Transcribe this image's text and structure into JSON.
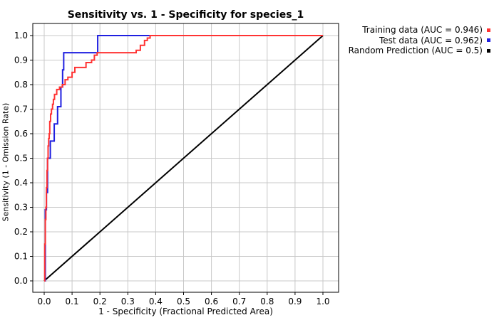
{
  "chart_data": {
    "type": "line",
    "title": "Sensitivity vs. 1 - Specificity for species_1",
    "xlabel": "1 - Specificity  (Fractional Predicted Area)",
    "ylabel": "Sensitivity (1 - Omission Rate)",
    "xlim": [
      0,
      1
    ],
    "ylim": [
      0,
      1
    ],
    "xticks": [
      "0.0",
      "0.1",
      "0.2",
      "0.3",
      "0.4",
      "0.5",
      "0.6",
      "0.7",
      "0.8",
      "0.9",
      "1.0"
    ],
    "yticks": [
      "0.0",
      "0.1",
      "0.2",
      "0.3",
      "0.4",
      "0.5",
      "0.6",
      "0.7",
      "0.8",
      "0.9",
      "1.0"
    ],
    "grid": true,
    "legend_position": "top-right",
    "series": [
      {
        "name": "Training data (AUC = 0.946)",
        "color": "#ff3333",
        "x": [
          0,
          0.002,
          0.002,
          0.004,
          0.004,
          0.006,
          0.006,
          0.008,
          0.008,
          0.01,
          0.01,
          0.012,
          0.012,
          0.014,
          0.014,
          0.016,
          0.016,
          0.018,
          0.018,
          0.02,
          0.02,
          0.023,
          0.023,
          0.026,
          0.026,
          0.03,
          0.03,
          0.033,
          0.033,
          0.037,
          0.037,
          0.045,
          0.045,
          0.055,
          0.055,
          0.065,
          0.065,
          0.075,
          0.075,
          0.085,
          0.085,
          0.1,
          0.1,
          0.11,
          0.11,
          0.15,
          0.15,
          0.17,
          0.17,
          0.18,
          0.18,
          0.19,
          0.19,
          0.33,
          0.33,
          0.345,
          0.345,
          0.36,
          0.36,
          0.37,
          0.37,
          0.38,
          0.38,
          1.0
        ],
        "y": [
          0,
          0,
          0.15,
          0.15,
          0.25,
          0.25,
          0.3,
          0.3,
          0.38,
          0.38,
          0.45,
          0.45,
          0.5,
          0.5,
          0.55,
          0.55,
          0.58,
          0.58,
          0.6,
          0.6,
          0.65,
          0.65,
          0.68,
          0.68,
          0.7,
          0.7,
          0.72,
          0.72,
          0.74,
          0.74,
          0.76,
          0.76,
          0.78,
          0.78,
          0.79,
          0.79,
          0.8,
          0.8,
          0.82,
          0.82,
          0.83,
          0.83,
          0.85,
          0.85,
          0.87,
          0.87,
          0.89,
          0.89,
          0.9,
          0.9,
          0.92,
          0.92,
          0.93,
          0.93,
          0.94,
          0.94,
          0.96,
          0.96,
          0.98,
          0.98,
          0.99,
          0.99,
          1.0,
          1.0
        ]
      },
      {
        "name": "Test data (AUC = 0.962)",
        "color": "#1f1fe0",
        "x": [
          0,
          0.004,
          0.004,
          0.008,
          0.008,
          0.012,
          0.012,
          0.022,
          0.022,
          0.036,
          0.036,
          0.048,
          0.048,
          0.06,
          0.06,
          0.066,
          0.066,
          0.07,
          0.07,
          0.192,
          0.192,
          1.0
        ],
        "y": [
          0,
          0,
          0.29,
          0.29,
          0.36,
          0.36,
          0.5,
          0.5,
          0.57,
          0.57,
          0.64,
          0.64,
          0.71,
          0.71,
          0.79,
          0.79,
          0.86,
          0.86,
          0.93,
          0.93,
          1.0,
          1.0
        ]
      },
      {
        "name": "Random Prediction (AUC = 0.5)",
        "color": "#000000",
        "x": [
          0,
          1
        ],
        "y": [
          0,
          1
        ]
      }
    ]
  }
}
